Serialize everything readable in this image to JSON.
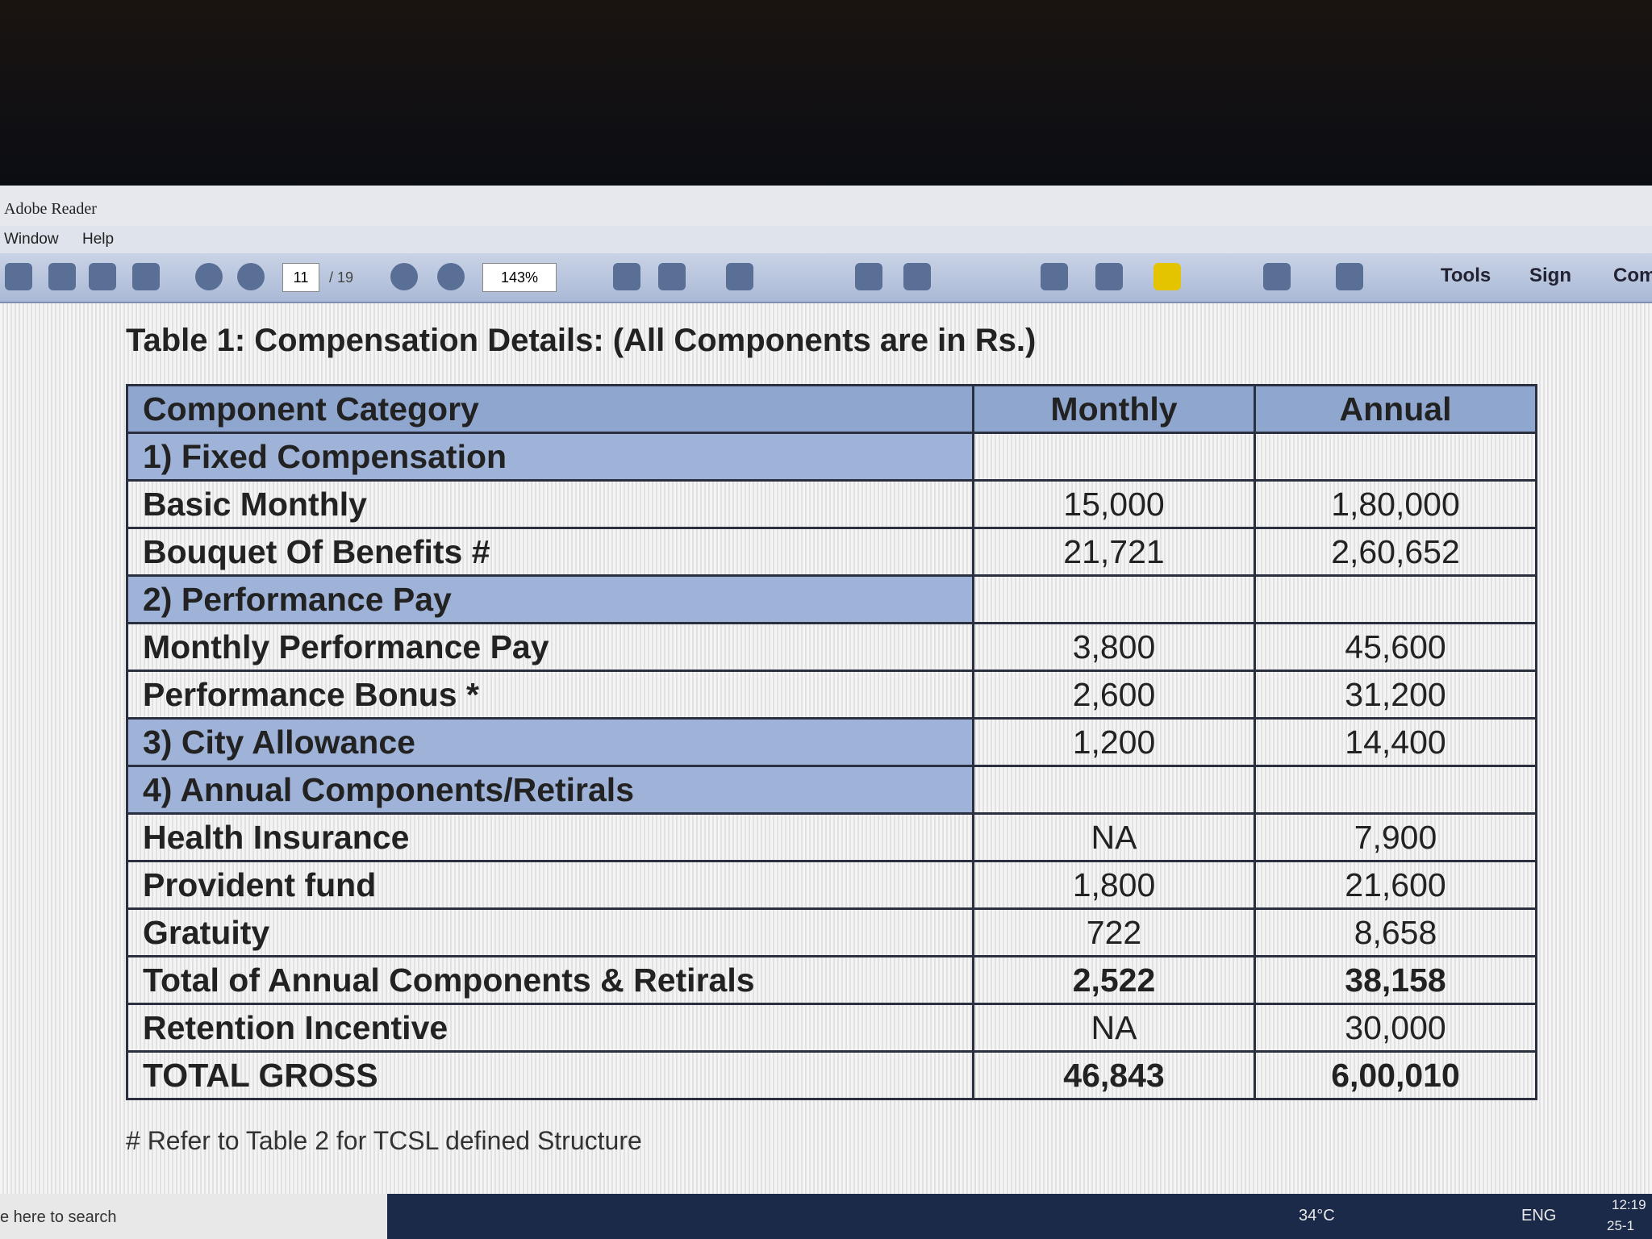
{
  "app": {
    "title": "Adobe Reader",
    "menu": [
      "Window",
      "Help"
    ],
    "toolbar": {
      "page": "11",
      "pages": "/ 19",
      "zoom": "143%",
      "buttons": [
        "Tools",
        "Sign",
        "Com"
      ]
    }
  },
  "document": {
    "title": "Table 1: Compensation Details: (All Components are in Rs.)",
    "table": {
      "header": [
        "Component Category",
        "Monthly",
        "Annual"
      ],
      "rows": [
        [
          "1) Fixed Compensation"
        ],
        [
          "Basic Monthly",
          "15,000",
          "1,80,000"
        ],
        [
          "Bouquet Of Benefits #",
          "21,721",
          "2,60,652"
        ],
        [
          "2) Performance Pay"
        ],
        [
          "Monthly Performance Pay",
          "3,800",
          "45,600"
        ],
        [
          "Performance Bonus *",
          "2,600",
          "31,200"
        ],
        [
          "3) City Allowance",
          "1,200",
          "14,400"
        ],
        [
          "4) Annual Components/Retirals"
        ],
        [
          "Health Insurance",
          "NA",
          "7,900"
        ],
        [
          "Provident fund",
          "1,800",
          "21,600"
        ],
        [
          "Gratuity",
          "722",
          "8,658"
        ],
        [
          "Total of Annual Components & Retirals",
          "2,522",
          "38,158"
        ],
        [
          "Retention Incentive",
          "NA",
          "30,000"
        ],
        [
          "TOTAL GROSS",
          "46,843",
          "6,00,010"
        ]
      ]
    },
    "footnote": "# Refer to Table 2 for TCSL defined Structure"
  },
  "taskbar": {
    "search": "e here to search",
    "weather": "34°C",
    "language": "ENG",
    "time": "12:19",
    "date": "25-1"
  }
}
